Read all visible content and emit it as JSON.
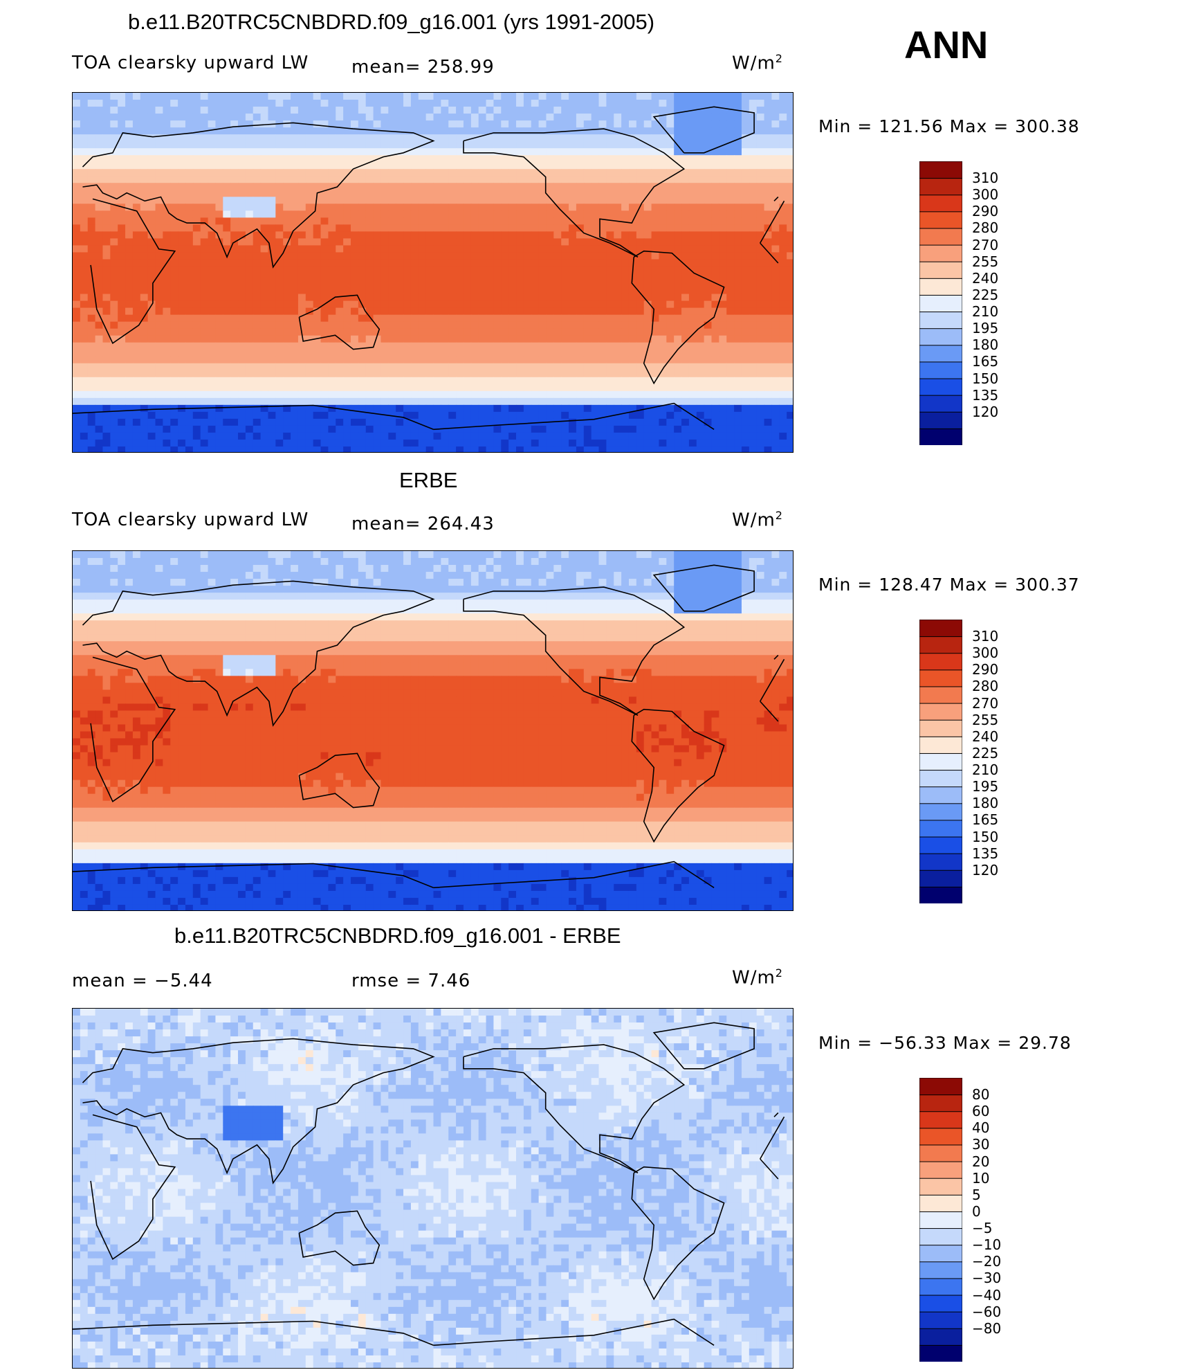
{
  "season": "ANN",
  "colors": {
    "abs_scale": [
      "#00006e",
      "#0a1f9e",
      "#1236c8",
      "#1a4fe6",
      "#3c75f0",
      "#6a9af5",
      "#9cbcf8",
      "#c5d9fb",
      "#e6effd",
      "#fde8d6",
      "#fbc5a6",
      "#f8a07c",
      "#f27a4f",
      "#ea5528",
      "#d9371a",
      "#b82510",
      "#8c0a05"
    ],
    "diff_scale": [
      "#00006e",
      "#0a1f9e",
      "#1236c8",
      "#1a4fe6",
      "#3c75f0",
      "#6a9af5",
      "#9cbcf8",
      "#c5d9fb",
      "#e6effd",
      "#fde8d6",
      "#fbc5a6",
      "#f8a07c",
      "#f27a4f",
      "#ea5528",
      "#d9371a",
      "#b82510",
      "#8c0a05"
    ]
  },
  "panels": [
    {
      "id": "model",
      "title": "b.e11.B20TRC5CNBDRD.f09_g16.001 (yrs 1991-2005)",
      "left_label": "TOA clearsky upward LW",
      "mean_label": "mean= 258.99",
      "unit": "W/m",
      "unit_sup": "2",
      "min_max": "Min  =  121.56  Max  =  300.38",
      "scale_labels": [
        "310",
        "300",
        "290",
        "280",
        "270",
        "255",
        "240",
        "225",
        "210",
        "195",
        "180",
        "165",
        "150",
        "135",
        "120"
      ]
    },
    {
      "id": "obs",
      "title": "ERBE",
      "left_label": "TOA clearsky upward LW",
      "mean_label": "mean= 264.43",
      "unit": "W/m",
      "unit_sup": "2",
      "min_max": "Min  =  128.47  Max  =  300.37",
      "scale_labels": [
        "310",
        "300",
        "290",
        "280",
        "270",
        "255",
        "240",
        "225",
        "210",
        "195",
        "180",
        "165",
        "150",
        "135",
        "120"
      ]
    },
    {
      "id": "diff",
      "title": "b.e11.B20TRC5CNBDRD.f09_g16.001 - ERBE",
      "left_label": "mean  =    −5.44",
      "mean_label": "rmse  =     7.46",
      "unit": "W/m",
      "unit_sup": "2",
      "min_max": "Min  =  −56.33  Max  =    29.78",
      "scale_labels": [
        "80",
        "60",
        "40",
        "30",
        "20",
        "10",
        "5",
        "0",
        "−5",
        "−10",
        "−20",
        "−30",
        "−40",
        "−60",
        "−80"
      ]
    }
  ]
}
